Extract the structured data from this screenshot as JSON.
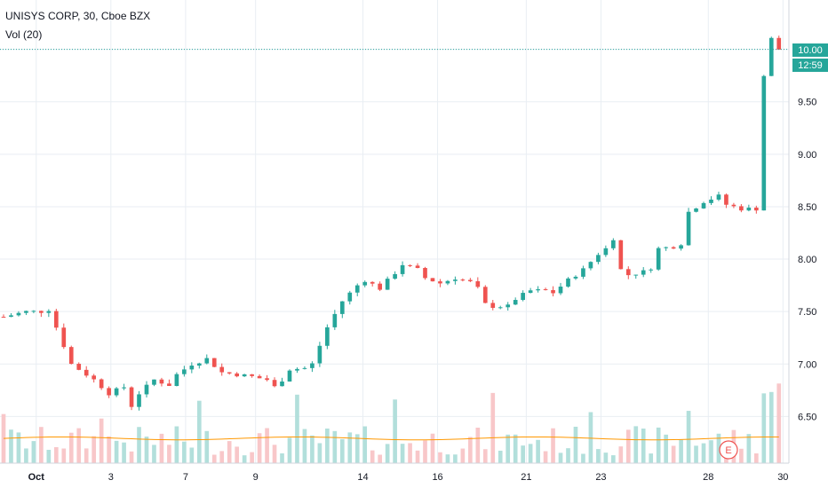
{
  "legend": {
    "title": "UNISYS CORP, 30, Cboe BZX",
    "volume": "Vol (20)"
  },
  "colors": {
    "up": "#26a69a",
    "down": "#ef5350",
    "volume_up": "#b2dfdb",
    "volume_down": "#f8c7c9",
    "volume_ma": "#ff9800",
    "grid": "#e9eef3",
    "last_price_line": "#26a69a",
    "background": "#ffffff"
  },
  "price_label": "10.00",
  "countdown_label": "12:59",
  "earnings_marker": "E",
  "chart_data": {
    "type": "candlestick",
    "title": "UNISYS CORP, 30, Cboe BZX",
    "y_ticks": [
      "10.00",
      "9.50",
      "9.00",
      "8.50",
      "8.00",
      "7.50",
      "7.00",
      "6.50"
    ],
    "y_tick_values": [
      10.0,
      9.5,
      9.0,
      8.5,
      8.0,
      7.5,
      7.0,
      6.5
    ],
    "x_ticks": [
      "Oct",
      "3",
      "7",
      "9",
      "14",
      "16",
      "21",
      "23",
      "28",
      "30"
    ],
    "ylim": [
      6.3,
      10.2
    ],
    "last_price": 10.0,
    "grid": true,
    "close_path": [
      [
        0,
        7.45
      ],
      [
        3,
        7.5
      ],
      [
        5,
        7.5
      ],
      [
        6,
        7.52
      ],
      [
        7,
        7.35
      ],
      [
        9,
        7.0
      ],
      [
        12,
        6.85
      ],
      [
        14,
        6.72
      ],
      [
        16,
        6.78
      ],
      [
        17,
        6.6
      ],
      [
        18,
        6.72
      ],
      [
        20,
        6.85
      ],
      [
        22,
        6.8
      ],
      [
        23,
        6.9
      ],
      [
        25,
        7.0
      ],
      [
        27,
        7.05
      ],
      [
        29,
        6.92
      ],
      [
        31,
        6.9
      ],
      [
        33,
        6.88
      ],
      [
        35,
        6.85
      ],
      [
        36,
        6.78
      ],
      [
        37,
        6.85
      ],
      [
        38,
        6.95
      ],
      [
        40,
        6.96
      ],
      [
        41,
        7.0
      ],
      [
        43,
        7.35
      ],
      [
        45,
        7.6
      ],
      [
        47,
        7.75
      ],
      [
        48,
        7.8
      ],
      [
        50,
        7.72
      ],
      [
        52,
        7.87
      ],
      [
        53,
        7.95
      ],
      [
        55,
        7.9
      ],
      [
        56,
        7.82
      ],
      [
        58,
        7.77
      ],
      [
        60,
        7.82
      ],
      [
        62,
        7.78
      ],
      [
        63,
        7.72
      ],
      [
        64,
        7.57
      ],
      [
        65,
        7.55
      ],
      [
        67,
        7.55
      ],
      [
        68,
        7.62
      ],
      [
        70,
        7.7
      ],
      [
        72,
        7.7
      ],
      [
        73,
        7.68
      ],
      [
        75,
        7.8
      ],
      [
        77,
        7.9
      ],
      [
        79,
        8.05
      ],
      [
        80,
        8.1
      ],
      [
        81,
        8.2
      ],
      [
        82,
        7.9
      ],
      [
        83,
        7.85
      ],
      [
        85,
        7.88
      ],
      [
        86,
        7.92
      ],
      [
        87,
        8.1
      ],
      [
        89,
        8.12
      ],
      [
        90,
        8.15
      ],
      [
        91,
        8.45
      ],
      [
        93,
        8.55
      ],
      [
        95,
        8.6
      ],
      [
        96,
        8.52
      ],
      [
        98,
        8.48
      ],
      [
        100,
        8.48
      ],
      [
        101,
        9.75
      ],
      [
        102,
        10.1
      ],
      [
        103,
        10.0
      ]
    ],
    "volume_axis_max": 100,
    "volume_ma_level": 9
  }
}
